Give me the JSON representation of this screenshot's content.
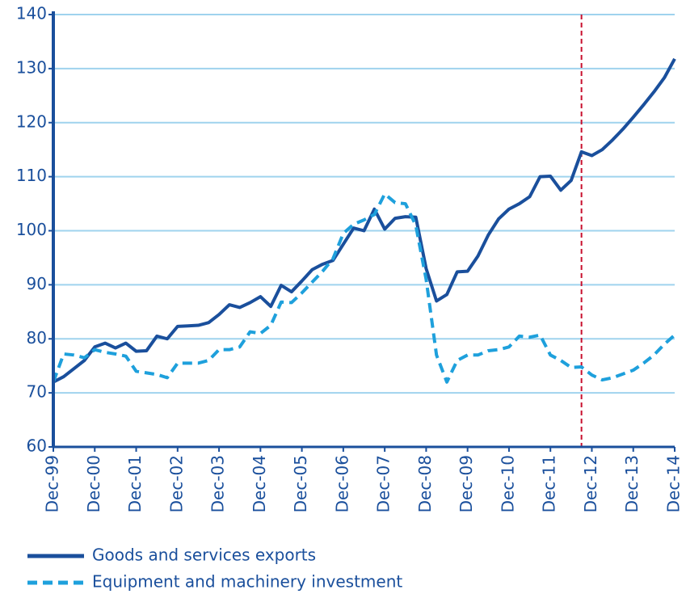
{
  "chart_data": {
    "type": "line",
    "categories": [
      "Dec-99",
      null,
      null,
      null,
      "Dec-00",
      null,
      null,
      null,
      "Dec-01",
      null,
      null,
      null,
      "Dec-02",
      null,
      null,
      null,
      "Dec-03",
      null,
      null,
      null,
      "Dec-04",
      null,
      null,
      null,
      "Dec-05",
      null,
      null,
      null,
      "Dec-06",
      null,
      null,
      null,
      "Dec-07",
      null,
      null,
      null,
      "Dec-08",
      null,
      null,
      null,
      "Dec-09",
      null,
      null,
      null,
      "Dec-10",
      null,
      null,
      null,
      "Dec-11",
      null,
      null,
      null,
      "Dec-12",
      null,
      null,
      null,
      "Dec-13",
      null,
      null,
      null,
      "Dec-14"
    ],
    "series": [
      {
        "name": "Goods and services exports",
        "color": "#1a4f9c",
        "dash": false,
        "values": [
          72,
          73,
          74.5,
          76,
          78.5,
          79.2,
          78.3,
          79.2,
          77.7,
          77.8,
          80.5,
          80,
          82.3,
          82.4,
          82.5,
          83,
          84.5,
          86.3,
          85.8,
          86.7,
          87.8,
          86,
          89.9,
          88.7,
          90.7,
          92.8,
          93.8,
          94.5,
          97.5,
          100.5,
          100,
          104,
          100.3,
          102.3,
          102.6,
          102.5,
          93,
          87,
          88.2,
          92.4,
          92.5,
          95.3,
          99.2,
          102.2,
          104,
          105,
          106.3,
          110,
          110.1,
          107.5,
          109.3,
          114.6,
          113.9,
          115,
          116.8,
          118.8,
          121,
          123.3,
          125.7,
          128.3,
          131.8
        ]
      },
      {
        "name": "Equipment and machinery investment",
        "color": "#1ea0dc",
        "dash": true,
        "values": [
          72,
          77.2,
          77,
          76.5,
          78,
          77.5,
          77.2,
          76.8,
          74,
          73.7,
          73.4,
          72.8,
          75.5,
          75.5,
          75.5,
          76,
          78,
          78,
          78.5,
          81.3,
          81,
          82.5,
          86.8,
          86.7,
          88.5,
          90.5,
          92.5,
          94.8,
          99.5,
          101.2,
          102,
          103,
          106.8,
          105.2,
          105,
          101,
          91,
          77,
          72,
          76,
          77,
          77,
          77.8,
          78,
          78.5,
          80.5,
          80.3,
          80.7,
          77,
          76,
          74.7,
          74.8,
          73.3,
          72.4,
          72.8,
          73.5,
          74.2,
          75.5,
          77,
          79,
          80.7
        ]
      }
    ],
    "ylim": [
      60,
      140
    ],
    "yticks": [
      60,
      70,
      80,
      90,
      100,
      110,
      120,
      130,
      140
    ],
    "grid": true,
    "vline": {
      "at": 51,
      "color": "#c8102e"
    }
  }
}
